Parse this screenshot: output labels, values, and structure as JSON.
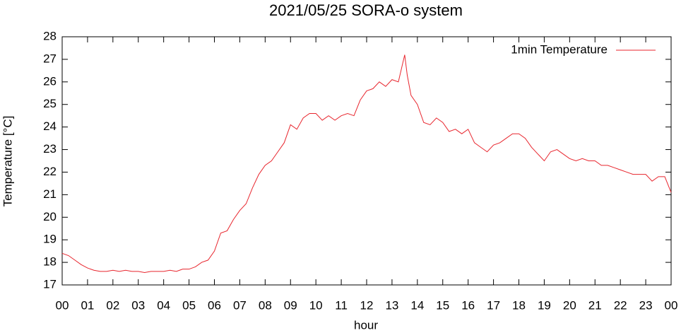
{
  "chart_data": {
    "type": "line",
    "title": "2021/05/25 SORA-o system",
    "xlabel": "hour",
    "ylabel": "Temperature [°C]",
    "x": [
      0,
      0.25,
      0.5,
      0.75,
      1,
      1.25,
      1.5,
      1.75,
      2,
      2.25,
      2.5,
      2.75,
      3,
      3.25,
      3.5,
      3.75,
      4,
      4.25,
      4.5,
      4.75,
      5,
      5.25,
      5.5,
      5.75,
      6,
      6.25,
      6.5,
      6.75,
      7,
      7.25,
      7.5,
      7.75,
      8,
      8.25,
      8.5,
      8.75,
      9,
      9.25,
      9.5,
      9.75,
      10,
      10.25,
      10.5,
      10.75,
      11,
      11.25,
      11.5,
      11.75,
      12,
      12.25,
      12.5,
      12.75,
      13,
      13.25,
      13.5,
      13.6,
      13.75,
      14,
      14.25,
      14.5,
      14.75,
      15,
      15.25,
      15.5,
      15.75,
      16,
      16.25,
      16.5,
      16.75,
      17,
      17.25,
      17.5,
      17.75,
      18,
      18.25,
      18.5,
      18.75,
      19,
      19.25,
      19.5,
      19.75,
      20,
      20.25,
      20.5,
      20.75,
      21,
      21.25,
      21.5,
      21.75,
      22,
      22.25,
      22.5,
      22.75,
      23,
      23.25,
      23.5,
      23.75,
      24
    ],
    "series": [
      {
        "name": "1min Temperature",
        "color": "#e8262e",
        "values": [
          18.4,
          18.3,
          18.1,
          17.9,
          17.75,
          17.65,
          17.6,
          17.6,
          17.65,
          17.6,
          17.65,
          17.6,
          17.6,
          17.55,
          17.6,
          17.6,
          17.6,
          17.65,
          17.6,
          17.7,
          17.7,
          17.8,
          18.0,
          18.1,
          18.5,
          19.3,
          19.4,
          19.9,
          20.3,
          20.6,
          21.3,
          21.9,
          22.3,
          22.5,
          22.9,
          23.3,
          24.1,
          23.9,
          24.4,
          24.6,
          24.6,
          24.3,
          24.5,
          24.3,
          24.5,
          24.6,
          24.5,
          25.2,
          25.6,
          25.7,
          26.0,
          25.8,
          26.1,
          26.0,
          27.2,
          26.3,
          25.4,
          25.0,
          24.2,
          24.1,
          24.4,
          24.2,
          23.8,
          23.9,
          23.7,
          23.9,
          23.3,
          23.1,
          22.9,
          23.2,
          23.3,
          23.5,
          23.7,
          23.7,
          23.5,
          23.1,
          22.8,
          22.5,
          22.9,
          23.0,
          22.8,
          22.6,
          22.5,
          22.6,
          22.5,
          22.5,
          22.3,
          22.3,
          22.2,
          22.1,
          22.0,
          21.9,
          21.9,
          21.9,
          21.6,
          21.8,
          21.8,
          21.1
        ]
      }
    ],
    "xlim": [
      0,
      24
    ],
    "xticks": [
      {
        "value": 0,
        "label": "00"
      },
      {
        "value": 1,
        "label": "01"
      },
      {
        "value": 2,
        "label": "02"
      },
      {
        "value": 3,
        "label": "03"
      },
      {
        "value": 4,
        "label": "04"
      },
      {
        "value": 5,
        "label": "05"
      },
      {
        "value": 6,
        "label": "06"
      },
      {
        "value": 7,
        "label": "07"
      },
      {
        "value": 8,
        "label": "08"
      },
      {
        "value": 9,
        "label": "09"
      },
      {
        "value": 10,
        "label": "10"
      },
      {
        "value": 11,
        "label": "11"
      },
      {
        "value": 12,
        "label": "12"
      },
      {
        "value": 13,
        "label": "13"
      },
      {
        "value": 14,
        "label": "14"
      },
      {
        "value": 15,
        "label": "15"
      },
      {
        "value": 16,
        "label": "16"
      },
      {
        "value": 17,
        "label": "17"
      },
      {
        "value": 18,
        "label": "18"
      },
      {
        "value": 19,
        "label": "19"
      },
      {
        "value": 20,
        "label": "20"
      },
      {
        "value": 21,
        "label": "21"
      },
      {
        "value": 22,
        "label": "22"
      },
      {
        "value": 23,
        "label": "23"
      },
      {
        "value": 24,
        "label": "00"
      }
    ],
    "ylim": [
      17,
      28
    ],
    "yticks": [
      17,
      18,
      19,
      20,
      21,
      22,
      23,
      24,
      25,
      26,
      27,
      28
    ],
    "legend": "upper right",
    "grid": false
  }
}
